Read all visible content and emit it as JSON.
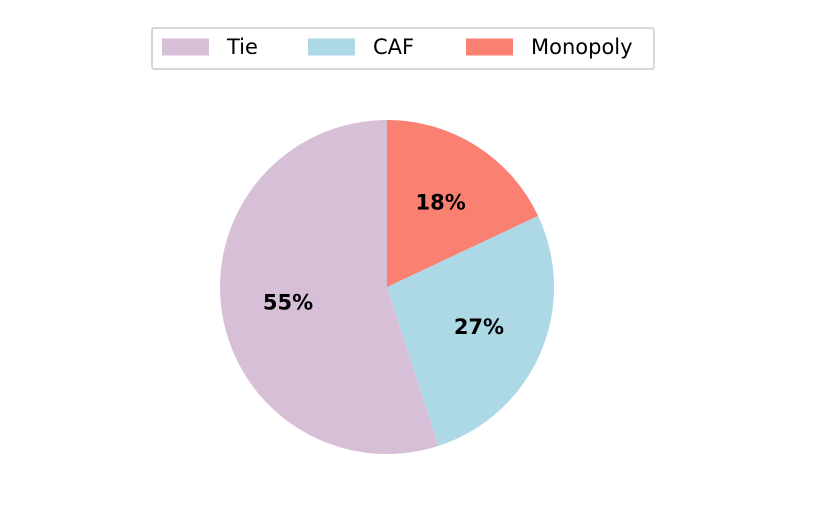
{
  "chart_data": {
    "type": "pie",
    "title": "",
    "categories": [
      "Tie",
      "CAF",
      "Monopoly"
    ],
    "values": [
      55,
      27,
      18
    ],
    "value_labels": [
      "55%",
      "27%",
      "18%"
    ],
    "colors": [
      "#d8bfd8",
      "#add8e6",
      "#fa8072"
    ],
    "start_angle": "top (12 o'clock), counter-clockwise",
    "legend": {
      "placement": "top-center",
      "orientation": "horizontal",
      "entries": [
        "Tie",
        "CAF",
        "Monopoly"
      ]
    }
  }
}
